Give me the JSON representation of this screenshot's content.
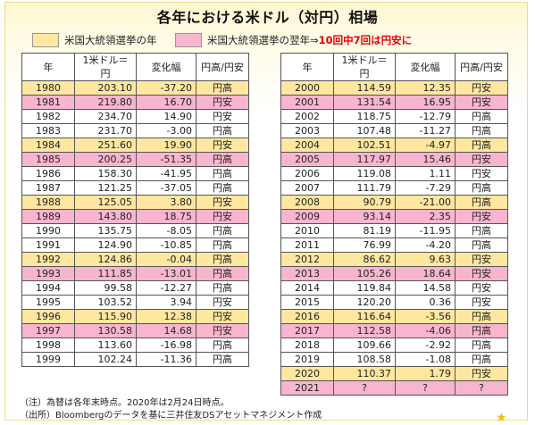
{
  "title": "各年における米ドル（対円）相場",
  "legend": {
    "election_year": "米国大統領選挙の年",
    "next_year": "米国大統領選挙の翌年⇒",
    "next_year_red": "10回中7回は円安に"
  },
  "headers": {
    "year": "年",
    "rate": "1米ドル＝円",
    "change": "変化幅",
    "direction": "円高/円安"
  },
  "colors": {
    "election_year": "#ffe7a0",
    "next_year": "#f8b5cf",
    "red_text": "#e60000"
  },
  "left_rows": [
    {
      "year": "1980",
      "rate": "203.10",
      "change": "-37.20",
      "dir": "円高",
      "hl": "yellow"
    },
    {
      "year": "1981",
      "rate": "219.80",
      "change": "16.70",
      "dir": "円安",
      "hl": "pink"
    },
    {
      "year": "1982",
      "rate": "234.70",
      "change": "14.90",
      "dir": "円安",
      "hl": ""
    },
    {
      "year": "1983",
      "rate": "231.70",
      "change": "-3.00",
      "dir": "円高",
      "hl": ""
    },
    {
      "year": "1984",
      "rate": "251.60",
      "change": "19.90",
      "dir": "円安",
      "hl": "yellow"
    },
    {
      "year": "1985",
      "rate": "200.25",
      "change": "-51.35",
      "dir": "円高",
      "hl": "pink"
    },
    {
      "year": "1986",
      "rate": "158.30",
      "change": "-41.95",
      "dir": "円高",
      "hl": ""
    },
    {
      "year": "1987",
      "rate": "121.25",
      "change": "-37.05",
      "dir": "円高",
      "hl": ""
    },
    {
      "year": "1988",
      "rate": "125.05",
      "change": "3.80",
      "dir": "円安",
      "hl": "yellow"
    },
    {
      "year": "1989",
      "rate": "143.80",
      "change": "18.75",
      "dir": "円安",
      "hl": "pink"
    },
    {
      "year": "1990",
      "rate": "135.75",
      "change": "-8.05",
      "dir": "円高",
      "hl": ""
    },
    {
      "year": "1991",
      "rate": "124.90",
      "change": "-10.85",
      "dir": "円高",
      "hl": ""
    },
    {
      "year": "1992",
      "rate": "124.86",
      "change": "-0.04",
      "dir": "円高",
      "hl": "yellow"
    },
    {
      "year": "1993",
      "rate": "111.85",
      "change": "-13.01",
      "dir": "円高",
      "hl": "pink"
    },
    {
      "year": "1994",
      "rate": "99.58",
      "change": "-12.27",
      "dir": "円高",
      "hl": ""
    },
    {
      "year": "1995",
      "rate": "103.52",
      "change": "3.94",
      "dir": "円安",
      "hl": ""
    },
    {
      "year": "1996",
      "rate": "115.90",
      "change": "12.38",
      "dir": "円安",
      "hl": "yellow"
    },
    {
      "year": "1997",
      "rate": "130.58",
      "change": "14.68",
      "dir": "円安",
      "hl": "pink"
    },
    {
      "year": "1998",
      "rate": "113.60",
      "change": "-16.98",
      "dir": "円高",
      "hl": ""
    },
    {
      "year": "1999",
      "rate": "102.24",
      "change": "-11.36",
      "dir": "円高",
      "hl": ""
    }
  ],
  "right_rows": [
    {
      "year": "2000",
      "rate": "114.59",
      "change": "12.35",
      "dir": "円安",
      "hl": "yellow"
    },
    {
      "year": "2001",
      "rate": "131.54",
      "change": "16.95",
      "dir": "円安",
      "hl": "pink"
    },
    {
      "year": "2002",
      "rate": "118.75",
      "change": "-12.79",
      "dir": "円高",
      "hl": ""
    },
    {
      "year": "2003",
      "rate": "107.48",
      "change": "-11.27",
      "dir": "円高",
      "hl": ""
    },
    {
      "year": "2004",
      "rate": "102.51",
      "change": "-4.97",
      "dir": "円高",
      "hl": "yellow"
    },
    {
      "year": "2005",
      "rate": "117.97",
      "change": "15.46",
      "dir": "円安",
      "hl": "pink"
    },
    {
      "year": "2006",
      "rate": "119.08",
      "change": "1.11",
      "dir": "円安",
      "hl": ""
    },
    {
      "year": "2007",
      "rate": "111.79",
      "change": "-7.29",
      "dir": "円高",
      "hl": ""
    },
    {
      "year": "2008",
      "rate": "90.79",
      "change": "-21.00",
      "dir": "円高",
      "hl": "yellow"
    },
    {
      "year": "2009",
      "rate": "93.14",
      "change": "2.35",
      "dir": "円安",
      "hl": "pink"
    },
    {
      "year": "2010",
      "rate": "81.19",
      "change": "-11.95",
      "dir": "円高",
      "hl": ""
    },
    {
      "year": "2011",
      "rate": "76.99",
      "change": "-4.20",
      "dir": "円高",
      "hl": ""
    },
    {
      "year": "2012",
      "rate": "86.62",
      "change": "9.63",
      "dir": "円安",
      "hl": "yellow"
    },
    {
      "year": "2013",
      "rate": "105.26",
      "change": "18.64",
      "dir": "円安",
      "hl": "pink"
    },
    {
      "year": "2014",
      "rate": "119.84",
      "change": "14.58",
      "dir": "円安",
      "hl": ""
    },
    {
      "year": "2015",
      "rate": "120.20",
      "change": "0.36",
      "dir": "円安",
      "hl": ""
    },
    {
      "year": "2016",
      "rate": "116.64",
      "change": "-3.56",
      "dir": "円高",
      "hl": "yellow"
    },
    {
      "year": "2017",
      "rate": "112.58",
      "change": "-4.06",
      "dir": "円高",
      "hl": "pink"
    },
    {
      "year": "2018",
      "rate": "109.66",
      "change": "-2.92",
      "dir": "円高",
      "hl": ""
    },
    {
      "year": "2019",
      "rate": "108.58",
      "change": "-1.08",
      "dir": "円高",
      "hl": ""
    },
    {
      "year": "2020",
      "rate": "110.37",
      "change": "1.79",
      "dir": "円安",
      "hl": "yellow"
    },
    {
      "year": "2021",
      "rate": "?",
      "change": "?",
      "dir": "?",
      "hl": "pink"
    }
  ],
  "notes": {
    "note1": "（注）為替は各年末時点。2020年は2月24日時点。",
    "note2": "（出所）Bloombergのデータを基に三井住友DSアセットマネジメント作成"
  }
}
